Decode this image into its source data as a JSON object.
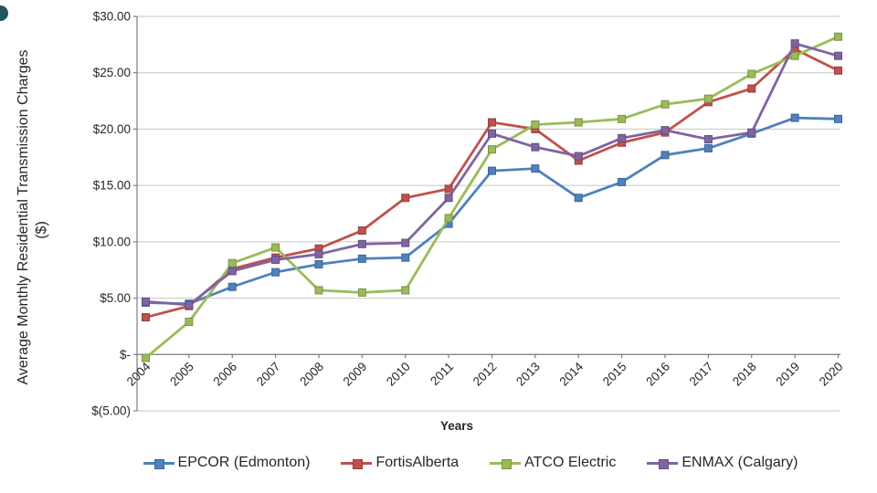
{
  "chart_data": {
    "type": "line",
    "title": "",
    "xlabel": "Years",
    "ylabel_line1": "Average Monthly Residential Transmission  Charges",
    "ylabel_line2": "($)",
    "x": [
      "2004",
      "2005",
      "2006",
      "2007",
      "2008",
      "2009",
      "2010",
      "2011",
      "2012",
      "2013",
      "2014",
      "2015",
      "2016",
      "2017",
      "2018",
      "2019",
      "2020"
    ],
    "ylim": [
      -5,
      30
    ],
    "ytick_values": [
      30,
      25,
      20,
      15,
      10,
      5,
      0,
      -5
    ],
    "ytick_labels": [
      "$30.00",
      "$25.00",
      "$20.00",
      "$15.00",
      "$10.00",
      "$5.00",
      "$-",
      "$(5.00)"
    ],
    "grid": true,
    "legend_position": "bottom",
    "series": [
      {
        "name": "EPCOR (Edmonton)",
        "color": "#4F81BD",
        "values": [
          4.6,
          4.5,
          6.0,
          7.3,
          8.0,
          8.5,
          8.6,
          11.6,
          16.3,
          16.5,
          13.9,
          15.3,
          17.7,
          18.3,
          19.6,
          21.0,
          20.9
        ]
      },
      {
        "name": "FortisAlberta",
        "color": "#C0504D",
        "values": [
          3.3,
          4.3,
          7.6,
          8.6,
          9.4,
          11.0,
          13.9,
          14.7,
          20.6,
          20.0,
          17.2,
          18.8,
          19.7,
          22.4,
          23.6,
          27.1,
          25.2
        ]
      },
      {
        "name": "ATCO Electric",
        "color": "#9BBB59",
        "values": [
          -0.3,
          2.9,
          8.1,
          9.5,
          5.7,
          5.5,
          5.7,
          12.1,
          18.2,
          20.4,
          20.6,
          20.9,
          22.2,
          22.7,
          24.9,
          26.5,
          28.2
        ]
      },
      {
        "name": "ENMAX (Calgary)",
        "color": "#8064A2",
        "values": [
          4.7,
          4.4,
          7.4,
          8.4,
          8.9,
          9.8,
          9.9,
          13.9,
          19.6,
          18.4,
          17.6,
          19.2,
          19.9,
          19.1,
          19.7,
          27.6,
          26.5
        ]
      }
    ],
    "grid_color": "#C6C6C6",
    "axis_color": "#7F7F7F",
    "text_color": "#262626"
  }
}
